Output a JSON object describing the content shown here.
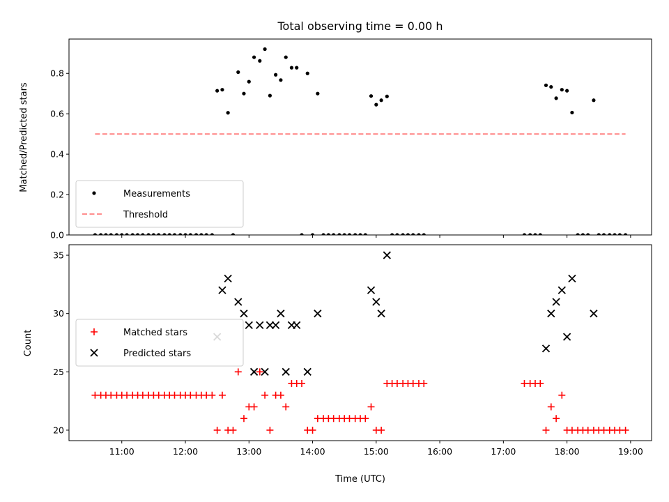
{
  "chart_data": [
    {
      "type": "scatter",
      "title": "Total observing time = 0.00 h",
      "xlabel": "",
      "ylabel": "Matched/Predicted stars",
      "x_unit": "hours UTC",
      "xlim": [
        10.17,
        19.33
      ],
      "ylim": [
        0,
        0.97
      ],
      "yticks": [
        0.0,
        0.2,
        0.4,
        0.6,
        0.8
      ],
      "ytick_labels": [
        "0.0",
        "0.2",
        "0.4",
        "0.6",
        "0.8"
      ],
      "xticks": [
        11,
        12,
        13,
        14,
        15,
        16,
        17,
        18,
        19
      ],
      "grid": false,
      "legend_position": "lower-left",
      "series": [
        {
          "name": "Measurements",
          "marker": "dot",
          "color": "#000000",
          "points": [
            [
              10.58,
              0
            ],
            [
              10.67,
              0
            ],
            [
              10.75,
              0
            ],
            [
              10.83,
              0
            ],
            [
              10.92,
              0
            ],
            [
              11.0,
              0
            ],
            [
              11.08,
              0
            ],
            [
              11.17,
              0
            ],
            [
              11.25,
              0
            ],
            [
              11.33,
              0
            ],
            [
              11.42,
              0
            ],
            [
              11.5,
              0
            ],
            [
              11.58,
              0
            ],
            [
              11.67,
              0
            ],
            [
              11.75,
              0
            ],
            [
              11.83,
              0
            ],
            [
              11.92,
              0
            ],
            [
              12.0,
              0
            ],
            [
              12.08,
              0
            ],
            [
              12.17,
              0
            ],
            [
              12.25,
              0
            ],
            [
              12.33,
              0
            ],
            [
              12.42,
              0
            ],
            [
              12.5,
              0.714
            ],
            [
              12.58,
              0.719
            ],
            [
              12.67,
              0.605
            ],
            [
              12.75,
              0
            ],
            [
              12.83,
              0.806
            ],
            [
              12.92,
              0.7
            ],
            [
              13.0,
              0.759
            ],
            [
              13.08,
              0.88
            ],
            [
              13.17,
              0.862
            ],
            [
              13.25,
              0.92
            ],
            [
              13.33,
              0.69
            ],
            [
              13.42,
              0.793
            ],
            [
              13.5,
              0.767
            ],
            [
              13.58,
              0.88
            ],
            [
              13.67,
              0.828
            ],
            [
              13.75,
              0.828
            ],
            [
              13.83,
              0
            ],
            [
              13.92,
              0.8
            ],
            [
              14.0,
              0
            ],
            [
              14.08,
              0.7
            ],
            [
              14.17,
              0
            ],
            [
              14.25,
              0
            ],
            [
              14.33,
              0
            ],
            [
              14.42,
              0
            ],
            [
              14.5,
              0
            ],
            [
              14.58,
              0
            ],
            [
              14.67,
              0
            ],
            [
              14.75,
              0
            ],
            [
              14.83,
              0
            ],
            [
              14.92,
              0.688
            ],
            [
              15.0,
              0.645
            ],
            [
              15.08,
              0.667
            ],
            [
              15.17,
              0.686
            ],
            [
              15.25,
              0
            ],
            [
              15.33,
              0
            ],
            [
              15.42,
              0
            ],
            [
              15.5,
              0
            ],
            [
              15.58,
              0
            ],
            [
              15.67,
              0
            ],
            [
              15.75,
              0
            ],
            [
              17.33,
              0
            ],
            [
              17.42,
              0
            ],
            [
              17.5,
              0
            ],
            [
              17.58,
              0
            ],
            [
              17.67,
              0.741
            ],
            [
              17.75,
              0.733
            ],
            [
              17.83,
              0.677
            ],
            [
              17.92,
              0.719
            ],
            [
              18.0,
              0.714
            ],
            [
              18.08,
              0.606
            ],
            [
              18.17,
              0
            ],
            [
              18.25,
              0
            ],
            [
              18.33,
              0
            ],
            [
              18.42,
              0.667
            ],
            [
              18.5,
              0
            ],
            [
              18.58,
              0
            ],
            [
              18.67,
              0
            ],
            [
              18.75,
              0
            ],
            [
              18.83,
              0
            ],
            [
              18.92,
              0
            ]
          ]
        },
        {
          "name": "Threshold",
          "style": "dashed",
          "color": "#ff7f7f",
          "points": [
            [
              10.58,
              0.5
            ],
            [
              18.92,
              0.5
            ]
          ]
        }
      ]
    },
    {
      "type": "scatter",
      "title": "",
      "xlabel": "Time (UTC)",
      "ylabel": "Count",
      "x_unit": "hours UTC",
      "xlim": [
        10.17,
        19.33
      ],
      "ylim": [
        19.1,
        35.9
      ],
      "yticks": [
        20,
        25,
        30,
        35
      ],
      "ytick_labels": [
        "20",
        "25",
        "30",
        "35"
      ],
      "xticks": [
        11,
        12,
        13,
        14,
        15,
        16,
        17,
        18,
        19
      ],
      "xtick_labels": [
        "11:00",
        "12:00",
        "13:00",
        "14:00",
        "15:00",
        "16:00",
        "17:00",
        "18:00",
        "19:00"
      ],
      "grid": false,
      "legend_position": "center-left",
      "series": [
        {
          "name": "Matched stars",
          "marker": "plus",
          "color": "#ff0000",
          "points": [
            [
              10.58,
              23
            ],
            [
              10.67,
              23
            ],
            [
              10.75,
              23
            ],
            [
              10.83,
              23
            ],
            [
              10.92,
              23
            ],
            [
              11.0,
              23
            ],
            [
              11.08,
              23
            ],
            [
              11.17,
              23
            ],
            [
              11.25,
              23
            ],
            [
              11.33,
              23
            ],
            [
              11.42,
              23
            ],
            [
              11.5,
              23
            ],
            [
              11.58,
              23
            ],
            [
              11.67,
              23
            ],
            [
              11.75,
              23
            ],
            [
              11.83,
              23
            ],
            [
              11.92,
              23
            ],
            [
              12.0,
              23
            ],
            [
              12.08,
              23
            ],
            [
              12.17,
              23
            ],
            [
              12.25,
              23
            ],
            [
              12.33,
              23
            ],
            [
              12.42,
              23
            ],
            [
              12.5,
              20
            ],
            [
              12.58,
              23
            ],
            [
              12.67,
              20
            ],
            [
              12.75,
              20
            ],
            [
              12.83,
              25
            ],
            [
              12.92,
              21
            ],
            [
              13.0,
              22
            ],
            [
              13.08,
              22
            ],
            [
              13.17,
              25
            ],
            [
              13.25,
              23
            ],
            [
              13.33,
              20
            ],
            [
              13.42,
              23
            ],
            [
              13.5,
              23
            ],
            [
              13.58,
              22
            ],
            [
              13.67,
              24
            ],
            [
              13.75,
              24
            ],
            [
              13.83,
              24
            ],
            [
              13.92,
              20
            ],
            [
              14.0,
              20
            ],
            [
              14.08,
              21
            ],
            [
              14.17,
              21
            ],
            [
              14.25,
              21
            ],
            [
              14.33,
              21
            ],
            [
              14.42,
              21
            ],
            [
              14.5,
              21
            ],
            [
              14.58,
              21
            ],
            [
              14.67,
              21
            ],
            [
              14.75,
              21
            ],
            [
              14.83,
              21
            ],
            [
              14.92,
              22
            ],
            [
              15.0,
              20
            ],
            [
              15.08,
              20
            ],
            [
              15.17,
              24
            ],
            [
              15.25,
              24
            ],
            [
              15.33,
              24
            ],
            [
              15.42,
              24
            ],
            [
              15.5,
              24
            ],
            [
              15.58,
              24
            ],
            [
              15.67,
              24
            ],
            [
              15.75,
              24
            ],
            [
              17.33,
              24
            ],
            [
              17.42,
              24
            ],
            [
              17.5,
              24
            ],
            [
              17.58,
              24
            ],
            [
              17.67,
              20
            ],
            [
              17.75,
              22
            ],
            [
              17.83,
              21
            ],
            [
              17.92,
              23
            ],
            [
              18.0,
              20
            ],
            [
              18.08,
              20
            ],
            [
              18.17,
              20
            ],
            [
              18.25,
              20
            ],
            [
              18.33,
              20
            ],
            [
              18.42,
              20
            ],
            [
              18.5,
              20
            ],
            [
              18.58,
              20
            ],
            [
              18.67,
              20
            ],
            [
              18.75,
              20
            ],
            [
              18.83,
              20
            ],
            [
              18.92,
              20
            ]
          ]
        },
        {
          "name": "Predicted stars",
          "marker": "x",
          "color": "#000000",
          "points": [
            [
              12.5,
              28
            ],
            [
              12.58,
              32
            ],
            [
              12.67,
              33
            ],
            [
              12.83,
              31
            ],
            [
              12.92,
              30
            ],
            [
              13.0,
              29
            ],
            [
              13.08,
              25
            ],
            [
              13.17,
              29
            ],
            [
              13.25,
              25
            ],
            [
              13.33,
              29
            ],
            [
              13.42,
              29
            ],
            [
              13.5,
              30
            ],
            [
              13.58,
              25
            ],
            [
              13.67,
              29
            ],
            [
              13.75,
              29
            ],
            [
              13.92,
              25
            ],
            [
              14.08,
              30
            ],
            [
              14.92,
              32
            ],
            [
              15.0,
              31
            ],
            [
              15.08,
              30
            ],
            [
              15.17,
              35
            ],
            [
              17.67,
              27
            ],
            [
              17.75,
              30
            ],
            [
              17.83,
              31
            ],
            [
              17.92,
              32
            ],
            [
              18.0,
              28
            ],
            [
              18.08,
              33
            ],
            [
              18.42,
              30
            ]
          ]
        }
      ]
    }
  ]
}
